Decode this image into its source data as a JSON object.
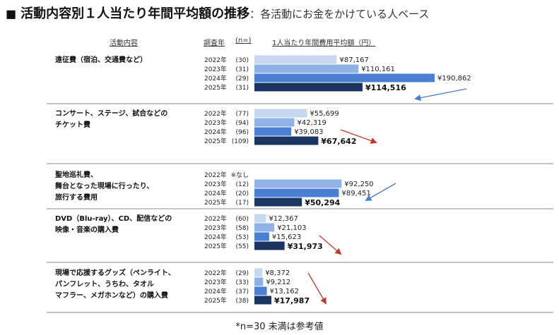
{
  "title": {
    "bullet": "■",
    "main": "活動内容別１人当たり年間平均額の推移",
    "separator": "：",
    "sub": "各活動にお金をかけている人ベース"
  },
  "headers": {
    "activity": "活動内容",
    "year": "調査年",
    "n": "(n=)",
    "value": "1人当たり年間費用平均額（円）"
  },
  "footnote": "*n=30 未満は参考値",
  "colors": {
    "2022年": "#c5d8f0",
    "2023年": "#8fb1e3",
    "2024年": "#4a7fd4",
    "2025年": "#1b3563",
    "divider": "#888888",
    "arrow_up": "#4a7fc4",
    "arrow_down": "#c0392b"
  },
  "chart_data": {
    "type": "bar",
    "orientation": "horizontal",
    "value_unit": "円",
    "groups": [
      {
        "label_lines": [
          "遠征費（宿泊、交通費など）"
        ],
        "rows": [
          {
            "year": "2022年",
            "n": "(30)",
            "value": 87167,
            "label": "¥87,167",
            "bold": false
          },
          {
            "year": "2023年",
            "n": "(31)",
            "value": 110161,
            "label": "¥110,161",
            "bold": false
          },
          {
            "year": "2024年",
            "n": "(29)",
            "value": 190862,
            "label": "¥190,862",
            "bold": false
          },
          {
            "year": "2025年",
            "n": "(31)",
            "value": 114516,
            "label": "¥114,516",
            "bold": true
          }
        ],
        "trend": "down-blue"
      },
      {
        "label_lines": [
          "コンサート、ステージ、試合などの",
          "チケット費"
        ],
        "rows": [
          {
            "year": "2022年",
            "n": "(77)",
            "value": 55699,
            "label": "¥55,699",
            "bold": false
          },
          {
            "year": "2023年",
            "n": "(94)",
            "value": 42319,
            "label": "¥42,319",
            "bold": false
          },
          {
            "year": "2024年",
            "n": "(96)",
            "value": 39083,
            "label": "¥39,083",
            "bold": false
          },
          {
            "year": "2025年",
            "n": "(109)",
            "value": 67642,
            "label": "¥67,642",
            "bold": true
          }
        ],
        "trend": "down-red"
      },
      {
        "label_lines": [
          "聖地巡礼費、",
          "舞台となった現場に行ったり、",
          "旅行する費用"
        ],
        "rows": [
          {
            "year": "2022年",
            "n": "",
            "note": "※なし",
            "value": null,
            "label": "",
            "bold": false
          },
          {
            "year": "2023年",
            "n": "(12)",
            "value": 92250,
            "label": "¥92,250",
            "bold": false
          },
          {
            "year": "2024年",
            "n": "(20)",
            "value": 89451,
            "label": "¥89,451",
            "bold": false
          },
          {
            "year": "2025年",
            "n": "(17)",
            "value": 50294,
            "label": "¥50,294",
            "bold": true
          }
        ],
        "trend": "down-blue"
      },
      {
        "label_lines": [
          "DVD（Blu-ray）、CD、配信などの",
          "映像・音楽の購入費"
        ],
        "rows": [
          {
            "year": "2022年",
            "n": "(60)",
            "value": 12367,
            "label": "¥12,367",
            "bold": false
          },
          {
            "year": "2023年",
            "n": "(58)",
            "value": 21103,
            "label": "¥21,103",
            "bold": false
          },
          {
            "year": "2024年",
            "n": "(53)",
            "value": 15623,
            "label": "¥15,623",
            "bold": false
          },
          {
            "year": "2025年",
            "n": "(55)",
            "value": 31973,
            "label": "¥31,973",
            "bold": true
          }
        ],
        "trend": "down-red"
      },
      {
        "label_lines": [
          "現場で応援するグッズ（ペンライト、",
          "パンフレット、うちわ、タオル",
          "マフラー、メガホンなど）の購入費"
        ],
        "rows": [
          {
            "year": "2022年",
            "n": "(29)",
            "value": 8372,
            "label": "¥8,372",
            "bold": false
          },
          {
            "year": "2023年",
            "n": "(33)",
            "value": 9212,
            "label": "¥9,212",
            "bold": false
          },
          {
            "year": "2024年",
            "n": "(37)",
            "value": 13162,
            "label": "¥13,162",
            "bold": false
          },
          {
            "year": "2025年",
            "n": "(38)",
            "value": 17987,
            "label": "¥17,987",
            "bold": true
          }
        ],
        "trend": "down-red"
      }
    ]
  }
}
